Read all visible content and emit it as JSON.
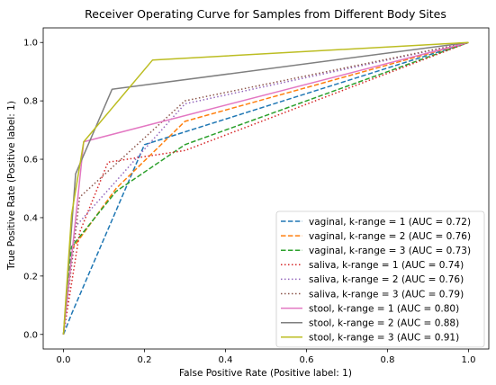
{
  "chart_data": {
    "type": "line",
    "title": "Receiver Operating Curve for Samples from Different Body Sites",
    "xlabel": "False Positive Rate (Positive label: 1)",
    "ylabel": "True Positive Rate (Positive label: 1)",
    "xlim": [
      -0.05,
      1.05
    ],
    "ylim": [
      -0.05,
      1.05
    ],
    "xticks": [
      "0.0",
      "0.2",
      "0.4",
      "0.6",
      "0.8",
      "1.0"
    ],
    "yticks": [
      "0.0",
      "0.2",
      "0.4",
      "0.6",
      "0.8",
      "1.0"
    ],
    "grid": false,
    "legend_position": "lower-right",
    "series": [
      {
        "name": "vaginal, k-range = 1 (AUC = 0.72)",
        "color": "#1f77b4",
        "dash": "dashed",
        "x": [
          0.0,
          0.02,
          0.2,
          1.0
        ],
        "y": [
          0.0,
          0.07,
          0.65,
          1.0
        ]
      },
      {
        "name": "vaginal, k-range = 2 (AUC = 0.76)",
        "color": "#ff7f0e",
        "dash": "dashed",
        "x": [
          0.0,
          0.02,
          0.13,
          0.3,
          1.0
        ],
        "y": [
          0.0,
          0.29,
          0.5,
          0.73,
          1.0
        ]
      },
      {
        "name": "vaginal, k-range = 3 (AUC = 0.73)",
        "color": "#2ca02c",
        "dash": "dashed",
        "x": [
          0.0,
          0.02,
          0.13,
          0.3,
          1.0
        ],
        "y": [
          0.0,
          0.3,
          0.49,
          0.65,
          1.0
        ]
      },
      {
        "name": "saliva, k-range = 1 (AUC = 0.74)",
        "color": "#d62728",
        "dash": "dotted",
        "x": [
          0.0,
          0.04,
          0.11,
          0.3,
          1.0
        ],
        "y": [
          0.0,
          0.35,
          0.59,
          0.63,
          1.0
        ]
      },
      {
        "name": "saliva, k-range = 2 (AUC = 0.76)",
        "color": "#9467bd",
        "dash": "dotted",
        "x": [
          0.0,
          0.03,
          0.3,
          1.0
        ],
        "y": [
          0.0,
          0.37,
          0.79,
          1.0
        ]
      },
      {
        "name": "saliva, k-range = 3 (AUC = 0.79)",
        "color": "#8c564b",
        "dash": "dotted",
        "x": [
          0.0,
          0.04,
          0.3,
          1.0
        ],
        "y": [
          0.0,
          0.47,
          0.8,
          1.0
        ]
      },
      {
        "name": "stool, k-range = 1 (AUC = 0.80)",
        "color": "#e377c2",
        "dash": "solid",
        "x": [
          0.0,
          0.05,
          1.0
        ],
        "y": [
          0.0,
          0.66,
          1.0
        ]
      },
      {
        "name": "stool, k-range = 2 (AUC = 0.88)",
        "color": "#7f7f7f",
        "dash": "solid",
        "x": [
          0.0,
          0.03,
          0.12,
          1.0
        ],
        "y": [
          0.0,
          0.55,
          0.84,
          1.0
        ]
      },
      {
        "name": "stool, k-range = 3 (AUC = 0.91)",
        "color": "#bcbd22",
        "dash": "solid",
        "x": [
          0.0,
          0.02,
          0.05,
          0.22,
          1.0
        ],
        "y": [
          0.0,
          0.41,
          0.66,
          0.94,
          1.0
        ]
      }
    ]
  }
}
